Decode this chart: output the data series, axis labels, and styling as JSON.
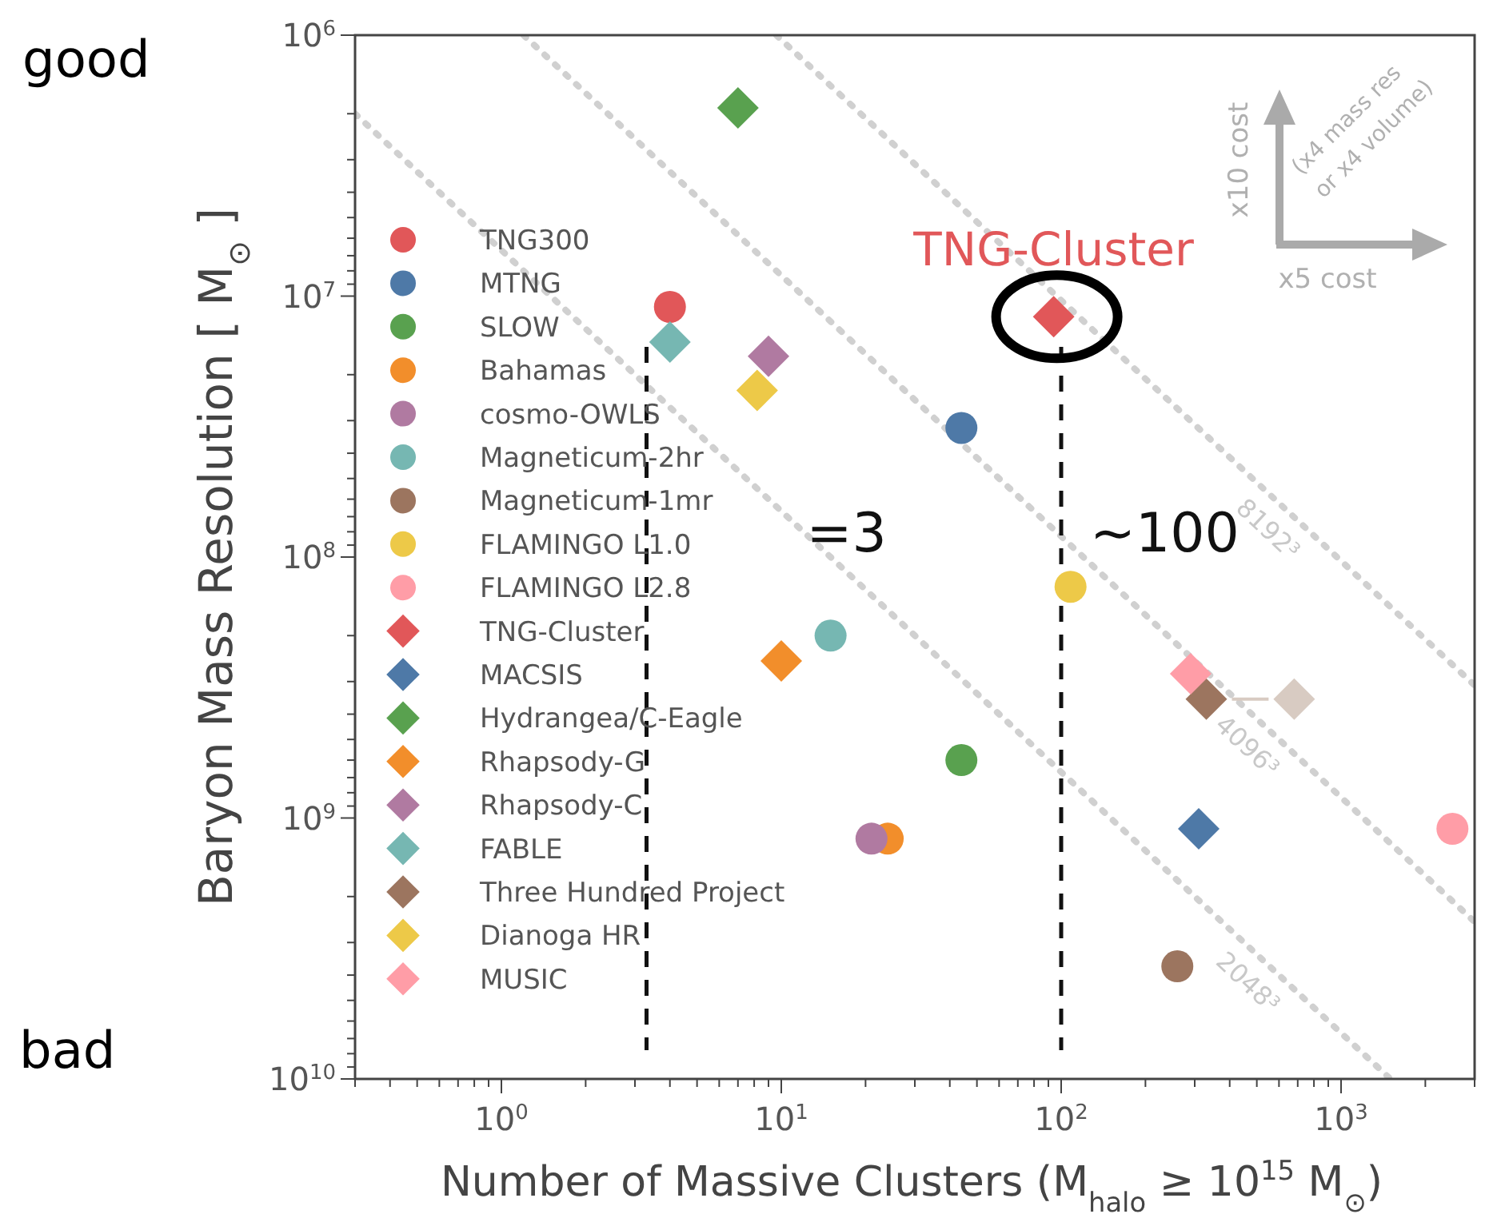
{
  "chart_data": {
    "type": "scatter",
    "xlabel": "Number of Massive Clusters (M$_{halo}$ ≥ 10$^{15}$ M$_{⊙}$)",
    "ylabel": "Baryon Mass Resolution [ M$_{⊙}$ ]",
    "log": "xy",
    "legend": "left",
    "grid": false,
    "xlim": [
      0.3,
      3000
    ],
    "ylim": [
      10000000000.0,
      1000000.0
    ],
    "xticks": [
      {
        "value": 0.3,
        "label": null
      },
      {
        "value": 0.4,
        "label": null
      },
      {
        "value": 0.5,
        "label": null
      },
      {
        "value": 0.6,
        "label": null
      },
      {
        "value": 0.7,
        "label": null
      },
      {
        "value": 0.8,
        "label": null
      },
      {
        "value": 0.9,
        "label": null
      },
      {
        "value": 1,
        "label": "10$^{0}$"
      },
      {
        "value": 2,
        "label": null
      },
      {
        "value": 3,
        "label": null
      },
      {
        "value": 4,
        "label": null
      },
      {
        "value": 5,
        "label": null
      },
      {
        "value": 6,
        "label": null
      },
      {
        "value": 7,
        "label": null
      },
      {
        "value": 8,
        "label": null
      },
      {
        "value": 9,
        "label": null
      },
      {
        "value": 10,
        "label": "10$^{1}$"
      },
      {
        "value": 20,
        "label": null
      },
      {
        "value": 30,
        "label": null
      },
      {
        "value": 40,
        "label": null
      },
      {
        "value": 50,
        "label": null
      },
      {
        "value": 60,
        "label": null
      },
      {
        "value": 70,
        "label": null
      },
      {
        "value": 80,
        "label": null
      },
      {
        "value": 90,
        "label": null
      },
      {
        "value": 100,
        "label": "10$^{2}$"
      },
      {
        "value": 200,
        "label": null
      },
      {
        "value": 300,
        "label": null
      },
      {
        "value": 400,
        "label": null
      },
      {
        "value": 500,
        "label": null
      },
      {
        "value": 600,
        "label": null
      },
      {
        "value": 700,
        "label": null
      },
      {
        "value": 800,
        "label": null
      },
      {
        "value": 900,
        "label": null
      },
      {
        "value": 1000,
        "label": "10$^{3}$"
      },
      {
        "value": 2000,
        "label": null
      },
      {
        "value": 3000,
        "label": null
      }
    ],
    "yticks": [
      {
        "value": 1000000.0,
        "label": "10$^{6}$"
      },
      {
        "value": 2000000.0,
        "label": null
      },
      {
        "value": 3000000.0,
        "label": null
      },
      {
        "value": 4000000.0,
        "label": null
      },
      {
        "value": 5000000.0,
        "label": null
      },
      {
        "value": 6000000.0,
        "label": null
      },
      {
        "value": 7000000.0,
        "label": null
      },
      {
        "value": 8000000.0,
        "label": null
      },
      {
        "value": 9000000.0,
        "label": null
      },
      {
        "value": 10000000.0,
        "label": "10$^{7}$"
      },
      {
        "value": 20000000.0,
        "label": null
      },
      {
        "value": 30000000.0,
        "label": null
      },
      {
        "value": 40000000.0,
        "label": null
      },
      {
        "value": 50000000.0,
        "label": null
      },
      {
        "value": 60000000.0,
        "label": null
      },
      {
        "value": 70000000.0,
        "label": null
      },
      {
        "value": 80000000.0,
        "label": null
      },
      {
        "value": 90000000.0,
        "label": null
      },
      {
        "value": 100000000.0,
        "label": "10$^{8}$"
      },
      {
        "value": 200000000.0,
        "label": null
      },
      {
        "value": 300000000.0,
        "label": null
      },
      {
        "value": 400000000.0,
        "label": null
      },
      {
        "value": 500000000.0,
        "label": null
      },
      {
        "value": 600000000.0,
        "label": null
      },
      {
        "value": 700000000.0,
        "label": null
      },
      {
        "value": 800000000.0,
        "label": null
      },
      {
        "value": 900000000.0,
        "label": null
      },
      {
        "value": 1000000000.0,
        "label": "10$^{9}$"
      },
      {
        "value": 2000000000.0,
        "label": null
      },
      {
        "value": 3000000000.0,
        "label": null
      },
      {
        "value": 4000000000.0,
        "label": null
      },
      {
        "value": 5000000000.0,
        "label": null
      },
      {
        "value": 6000000000.0,
        "label": null
      },
      {
        "value": 7000000000.0,
        "label": null
      },
      {
        "value": 8000000000.0,
        "label": null
      },
      {
        "value": 9000000000.0,
        "label": null
      },
      {
        "value": 10000000000.0,
        "label": "10$^{10}$"
      }
    ],
    "series": [
      {
        "name": "TNG300",
        "marker": "circle",
        "color": "#e15759",
        "x": [
          4
        ],
        "values": [
          11000000.0
        ]
      },
      {
        "name": "MTNG",
        "marker": "circle",
        "color": "#4e79a7",
        "x": [
          44
        ],
        "values": [
          32000000.0
        ]
      },
      {
        "name": "SLOW",
        "marker": "circle",
        "color": "#59a14f",
        "x": [
          44
        ],
        "values": [
          600000000.0
        ]
      },
      {
        "name": "Bahamas",
        "marker": "circle",
        "color": "#f28e2b",
        "x": [
          24
        ],
        "values": [
          1200000000.0
        ]
      },
      {
        "name": "cosmo-OWLS",
        "marker": "circle",
        "color": "#b07aa1",
        "x": [
          21
        ],
        "values": [
          1200000000.0
        ]
      },
      {
        "name": "Magneticum-2hr",
        "marker": "circle",
        "color": "#76b7b2",
        "x": [
          15
        ],
        "values": [
          200000000.0
        ]
      },
      {
        "name": "Magneticum-1mr",
        "marker": "circle",
        "color": "#9c755f",
        "x": [
          260
        ],
        "values": [
          3700000000.0
        ]
      },
      {
        "name": "FLAMINGO L1.0",
        "marker": "circle",
        "color": "#edc948",
        "x": [
          108
        ],
        "values": [
          130000000.0
        ]
      },
      {
        "name": "FLAMINGO L2.8",
        "marker": "circle",
        "color": "#ff9da7",
        "x": [
          2500
        ],
        "values": [
          1100000000.0
        ]
      },
      {
        "name": "TNG-Cluster",
        "marker": "diamond",
        "color": "#e15759",
        "x": [
          94
        ],
        "values": [
          12000000.0
        ]
      },
      {
        "name": "MACSIS",
        "marker": "diamond",
        "color": "#4e79a7",
        "x": [
          310
        ],
        "values": [
          1100000000.0
        ]
      },
      {
        "name": "Hydrangea/C-Eagle",
        "marker": "diamond",
        "color": "#59a14f",
        "x": [
          7
        ],
        "values": [
          1900000.0
        ]
      },
      {
        "name": "Rhapsody-G",
        "marker": "diamond",
        "color": "#f28e2b",
        "x": [
          10
        ],
        "values": [
          250000000.0
        ]
      },
      {
        "name": "Rhapsody-C",
        "marker": "diamond",
        "color": "#b07aa1",
        "x": [
          9
        ],
        "values": [
          17000000.0
        ]
      },
      {
        "name": "FABLE",
        "marker": "diamond",
        "color": "#76b7b2",
        "x": [
          4
        ],
        "values": [
          15000000.0
        ]
      },
      {
        "name": "Three Hundred Project",
        "marker": "diamond",
        "color": "#9c755f",
        "colors": [
          "#9c755f",
          "#d8cbc2"
        ],
        "x": [
          330,
          680
        ],
        "values": [
          350000000.0,
          350000000.0
        ]
      },
      {
        "name": "Dianoga HR",
        "marker": "diamond",
        "color": "#edc948",
        "x": [
          8.2
        ],
        "values": [
          23000000.0
        ]
      },
      {
        "name": "MUSIC",
        "marker": "diamond",
        "color": "#ff9da7",
        "x": [
          290
        ],
        "values": [
          280000000.0
        ]
      },
      {
        "name": "2048³",
        "type": "line",
        "line_style": "dotted",
        "color": "#d0d0d0",
        "x": [
          0.3,
          1500
        ],
        "values": [
          2000000.0,
          10000000000.0
        ]
      },
      {
        "name": "4096³",
        "type": "line",
        "line_style": "dotted",
        "color": "#d0d0d0",
        "x": [
          1.2,
          3000
        ],
        "values": [
          1000000.0,
          2500000000.0
        ]
      },
      {
        "name": "8192³",
        "type": "line",
        "line_style": "dotted",
        "color": "#d0d0d0",
        "x": [
          9.6,
          3000
        ],
        "values": [
          1000000.0,
          310000000.0
        ]
      }
    ],
    "ref_lines": [
      {
        "axis": "x",
        "value": 3.3,
        "label": "=3",
        "color": "#111111",
        "line_style": "dashed"
      },
      {
        "axis": "x",
        "value": 100,
        "label": "~100",
        "color": "#111111",
        "line_style": "dashed"
      }
    ],
    "annotations": [
      "good",
      "bad",
      "x10 cost",
      "x5 cost",
      "(x4 mass res",
      "or x4 volume)",
      {
        "text": "TNG-Cluster",
        "x": 94,
        "y": 12000000.0
      }
    ]
  }
}
